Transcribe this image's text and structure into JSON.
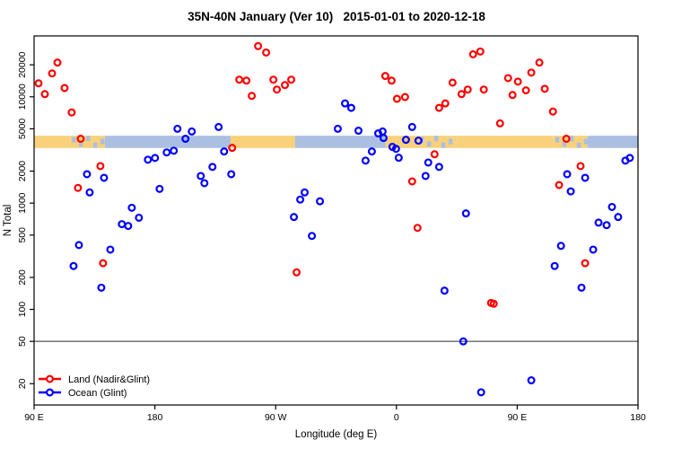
{
  "chart_data": {
    "type": "scatter",
    "title": "35N-40N January (Ver 10)   2015-01-01 to 2020-12-18",
    "xlabel": "Longitude (deg E)",
    "ylabel": "N Total",
    "x_axis": {
      "range": [
        90,
        540
      ],
      "ticks": [
        {
          "pos": 90,
          "label": "90 E"
        },
        {
          "pos": 180,
          "label": "180"
        },
        {
          "pos": 270,
          "label": "90 W"
        },
        {
          "pos": 360,
          "label": "0"
        },
        {
          "pos": 450,
          "label": "90 E"
        },
        {
          "pos": 540,
          "label": "180"
        }
      ]
    },
    "y_axis": {
      "scale": "log",
      "range": [
        12.6,
        37400
      ],
      "ticks": [
        {
          "value": 20,
          "label": "20"
        },
        {
          "value": 50,
          "label": "50"
        },
        {
          "value": 100,
          "label": "100"
        },
        {
          "value": 200,
          "label": "200"
        },
        {
          "value": 500,
          "label": "500"
        },
        {
          "value": 1000,
          "label": "1000"
        },
        {
          "value": 2000,
          "label": "2000"
        },
        {
          "value": 5000,
          "label": "5000"
        },
        {
          "value": 10000,
          "label": "10000"
        },
        {
          "value": 20000,
          "label": "20000"
        }
      ]
    },
    "reference_line_value": 50,
    "reference_line_color": "#555555",
    "land_ocean_band": {
      "value_top": 4300,
      "value_bottom": 3300,
      "land_color": "#f8d17a",
      "ocean_color": "#aabfe1",
      "segments": [
        {
          "from": 90.0,
          "to": 116.7,
          "type": "land"
        },
        {
          "from": 116.7,
          "to": 142.8,
          "type": "mixed"
        },
        {
          "from": 142.8,
          "to": 236.4,
          "type": "ocean"
        },
        {
          "from": 236.4,
          "to": 284.5,
          "type": "land"
        },
        {
          "from": 284.5,
          "to": 352.0,
          "type": "ocean"
        },
        {
          "from": 352.0,
          "to": 376.1,
          "type": "land"
        },
        {
          "from": 376.1,
          "to": 405.5,
          "type": "mixed"
        },
        {
          "from": 405.5,
          "to": 477.0,
          "type": "land"
        },
        {
          "from": 477.0,
          "to": 502.4,
          "type": "mixed"
        },
        {
          "from": 502.4,
          "to": 540.0,
          "type": "ocean"
        }
      ]
    },
    "series": [
      {
        "name": "Land (Nadir&Glint)",
        "color": "#ff0000",
        "points": [
          [
            107.4,
            21000
          ],
          [
            103.4,
            16600
          ],
          [
            93.3,
            13400
          ],
          [
            98.0,
            10600
          ],
          [
            112.7,
            12100
          ],
          [
            118.0,
            7130
          ],
          [
            124.7,
            4030
          ],
          [
            139.4,
            2230
          ],
          [
            122.7,
            1390
          ],
          [
            141.4,
            272
          ],
          [
            256.9,
            30000
          ],
          [
            262.9,
            26100
          ],
          [
            242.9,
            14500
          ],
          [
            248.2,
            14200
          ],
          [
            252.2,
            10200
          ],
          [
            268.3,
            14500
          ],
          [
            270.9,
            11700
          ],
          [
            276.9,
            12900
          ],
          [
            281.6,
            14500
          ],
          [
            237.6,
            3310
          ],
          [
            285.6,
            223
          ],
          [
            375.7,
            585
          ],
          [
            351.7,
            15700
          ],
          [
            356.4,
            14200
          ],
          [
            360.4,
            9580
          ],
          [
            366.4,
            9950
          ],
          [
            401.8,
            13600
          ],
          [
            408.5,
            10600
          ],
          [
            413.1,
            11700
          ],
          [
            417.1,
            25100
          ],
          [
            422.5,
            26700
          ],
          [
            425.1,
            11700
          ],
          [
            391.8,
            7870
          ],
          [
            396.4,
            8670
          ],
          [
            388.4,
            2880
          ],
          [
            371.7,
            1600
          ],
          [
            430.5,
            115
          ],
          [
            466.5,
            21000
          ],
          [
            460.5,
            16900
          ],
          [
            443.2,
            15000
          ],
          [
            450.5,
            13900
          ],
          [
            456.5,
            11500
          ],
          [
            446.5,
            10400
          ],
          [
            470.5,
            11900
          ],
          [
            476.6,
            7270
          ],
          [
            437.2,
            5620
          ],
          [
            486.6,
            4030
          ],
          [
            497.2,
            2230
          ],
          [
            481.2,
            1480
          ],
          [
            500.6,
            272
          ],
          [
            432.5,
            113
          ]
        ]
      },
      {
        "name": "Ocean (Glint)",
        "color": "#0000ff",
        "points": [
          [
            196.8,
            5000
          ],
          [
            202.8,
            4030
          ],
          [
            174.8,
            2560
          ],
          [
            180.1,
            2660
          ],
          [
            188.8,
            3000
          ],
          [
            194.1,
            3110
          ],
          [
            129.4,
            1870
          ],
          [
            142.1,
            1730
          ],
          [
            131.4,
            1260
          ],
          [
            183.5,
            1360
          ],
          [
            162.8,
            904
          ],
          [
            168.1,
            728
          ],
          [
            155.4,
            634
          ],
          [
            160.1,
            610
          ],
          [
            123.4,
            403
          ],
          [
            146.8,
            365
          ],
          [
            119.4,
            256
          ],
          [
            140.1,
            160
          ],
          [
            227.5,
            5200
          ],
          [
            207.5,
            4720
          ],
          [
            231.6,
            3060
          ],
          [
            222.9,
            2190
          ],
          [
            214.2,
            1800
          ],
          [
            216.9,
            1540
          ],
          [
            236.9,
            1870
          ],
          [
            291.6,
            1260
          ],
          [
            288.3,
            1080
          ],
          [
            303.0,
            1040
          ],
          [
            283.6,
            740
          ],
          [
            297.0,
            491
          ],
          [
            316.3,
            5000
          ],
          [
            321.7,
            8670
          ],
          [
            326.3,
            7870
          ],
          [
            331.7,
            4800
          ],
          [
            346.4,
            4530
          ],
          [
            349.7,
            4720
          ],
          [
            350.4,
            4100
          ],
          [
            367.1,
            3940
          ],
          [
            371.7,
            5200
          ],
          [
            376.4,
            3870
          ],
          [
            357.0,
            3380
          ],
          [
            359.7,
            3240
          ],
          [
            361.7,
            2670
          ],
          [
            341.7,
            3060
          ],
          [
            337.0,
            2510
          ],
          [
            383.7,
            2410
          ],
          [
            391.8,
            2190
          ],
          [
            381.7,
            1800
          ],
          [
            411.8,
            800
          ],
          [
            395.8,
            150
          ],
          [
            409.8,
            50
          ],
          [
            423.1,
            16.6
          ],
          [
            482.6,
            396
          ],
          [
            506.6,
            365
          ],
          [
            477.9,
            256
          ],
          [
            497.9,
            160
          ],
          [
            460.5,
            21.5
          ],
          [
            487.2,
            1870
          ],
          [
            500.6,
            1730
          ],
          [
            489.9,
            1290
          ],
          [
            520.6,
            920
          ],
          [
            525.2,
            740
          ],
          [
            510.6,
            655
          ],
          [
            516.6,
            620
          ],
          [
            530.6,
            2510
          ],
          [
            533.9,
            2660
          ]
        ]
      }
    ],
    "legend": {
      "position": "bottom-left",
      "items": [
        {
          "label": "Land (Nadir&Glint)",
          "color": "#ff0000"
        },
        {
          "label": "Ocean (Glint)",
          "color": "#0000ff"
        }
      ]
    },
    "layout": {
      "plot_left": 38,
      "plot_right": 711,
      "plot_top": 40,
      "plot_bottom": 451,
      "axis_color": "#000000",
      "background": "#ffffff"
    }
  }
}
